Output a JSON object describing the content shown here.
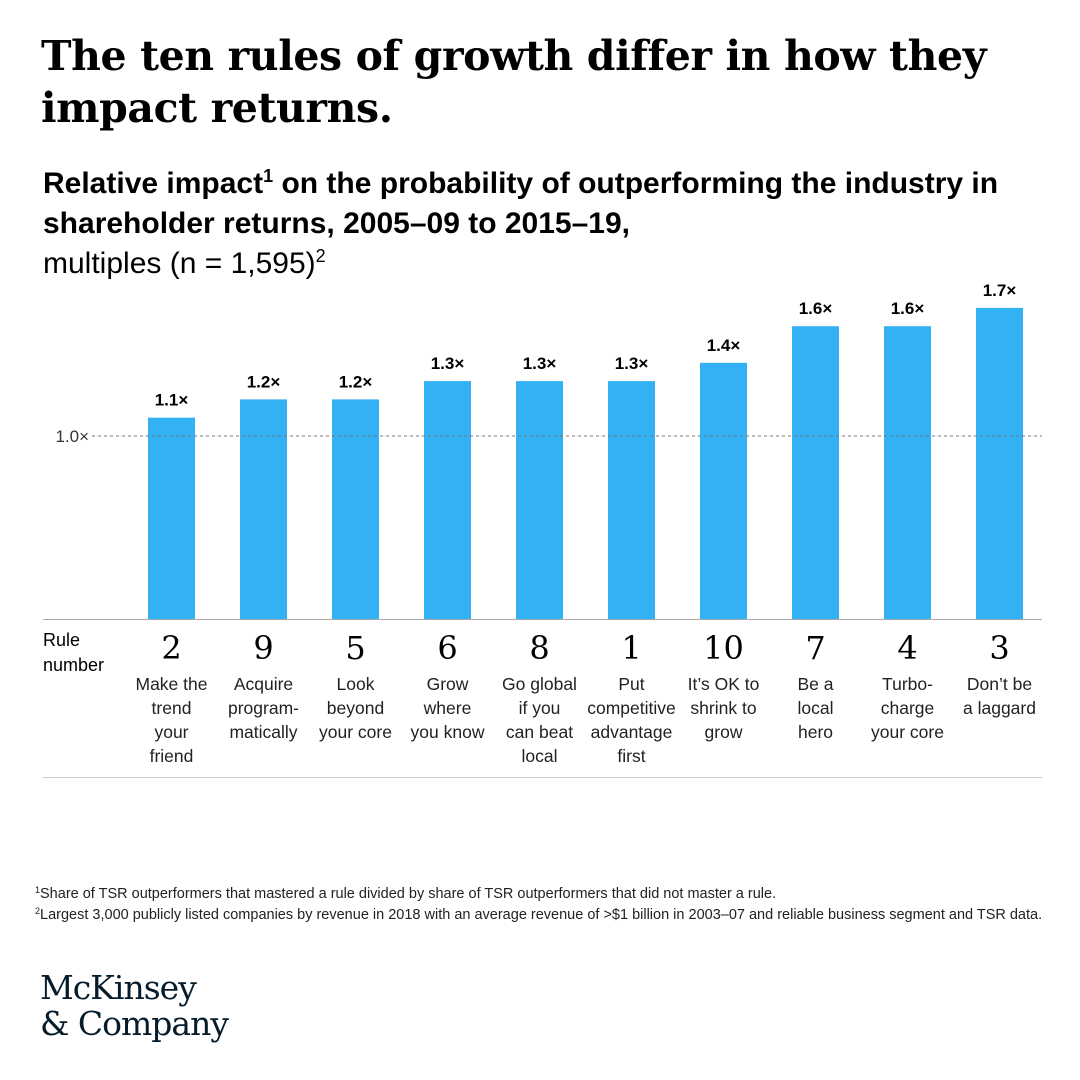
{
  "headline": "The ten rules of growth differ in how they impact returns.",
  "subtitle": {
    "part1": "Relative impact",
    "sup1": "1",
    "part2": " on the probability of outperforming the industry in shareholder returns, 2005–09 to 2015–19,",
    "part3": "multiples (n = 1,595)",
    "sup2": "2"
  },
  "rule_header": "Rule\nnumber",
  "chart_data": {
    "type": "bar",
    "title": "Relative impact on the probability of outperforming the industry in shareholder returns, 2005–09 to 2015–19, multiples (n = 1,595)",
    "categories": [
      "2",
      "9",
      "5",
      "6",
      "8",
      "1",
      "10",
      "7",
      "4",
      "3"
    ],
    "category_names": [
      "Make the\ntrend\nyour\nfriend",
      "Acquire\nprogram-\nmatically",
      "Look\nbeyond\nyour core",
      "Grow\nwhere\nyou know",
      "Go global\nif you\ncan beat\nlocal",
      "Put\ncompetitive\nadvantage\nfirst",
      "It’s OK to\nshrink to\ngrow",
      "Be a\nlocal\nhero",
      "Turbo-\ncharge\nyour core",
      "Don’t be\na laggard"
    ],
    "values": [
      1.1,
      1.2,
      1.2,
      1.3,
      1.3,
      1.3,
      1.4,
      1.6,
      1.6,
      1.7
    ],
    "value_labels": [
      "1.1×",
      "1.2×",
      "1.2×",
      "1.3×",
      "1.3×",
      "1.3×",
      "1.4×",
      "1.6×",
      "1.6×",
      "1.7×"
    ],
    "reference_line": {
      "value": 1.0,
      "label": "1.0×"
    },
    "ylim": [
      0,
      1.7
    ],
    "grid": false,
    "legend": "none",
    "bar_color": "#33b1f5"
  },
  "footnotes": [
    {
      "mark": "1",
      "text": "Share of TSR outperformers that mastered a rule divided by share of TSR outperformers that did not master a rule."
    },
    {
      "mark": "2",
      "text": "Largest 3,000 publicly listed companies by revenue in 2018 with an average revenue of >$1 billion in 2003–07 and reliable business segment and TSR data."
    }
  ],
  "logo": {
    "line1": "McKinsey",
    "line2": "& Company"
  },
  "colors": {
    "bar": "#33b1f5",
    "logo": "#051c2c",
    "axis": "#aaaaaa",
    "reference": "#777777"
  }
}
